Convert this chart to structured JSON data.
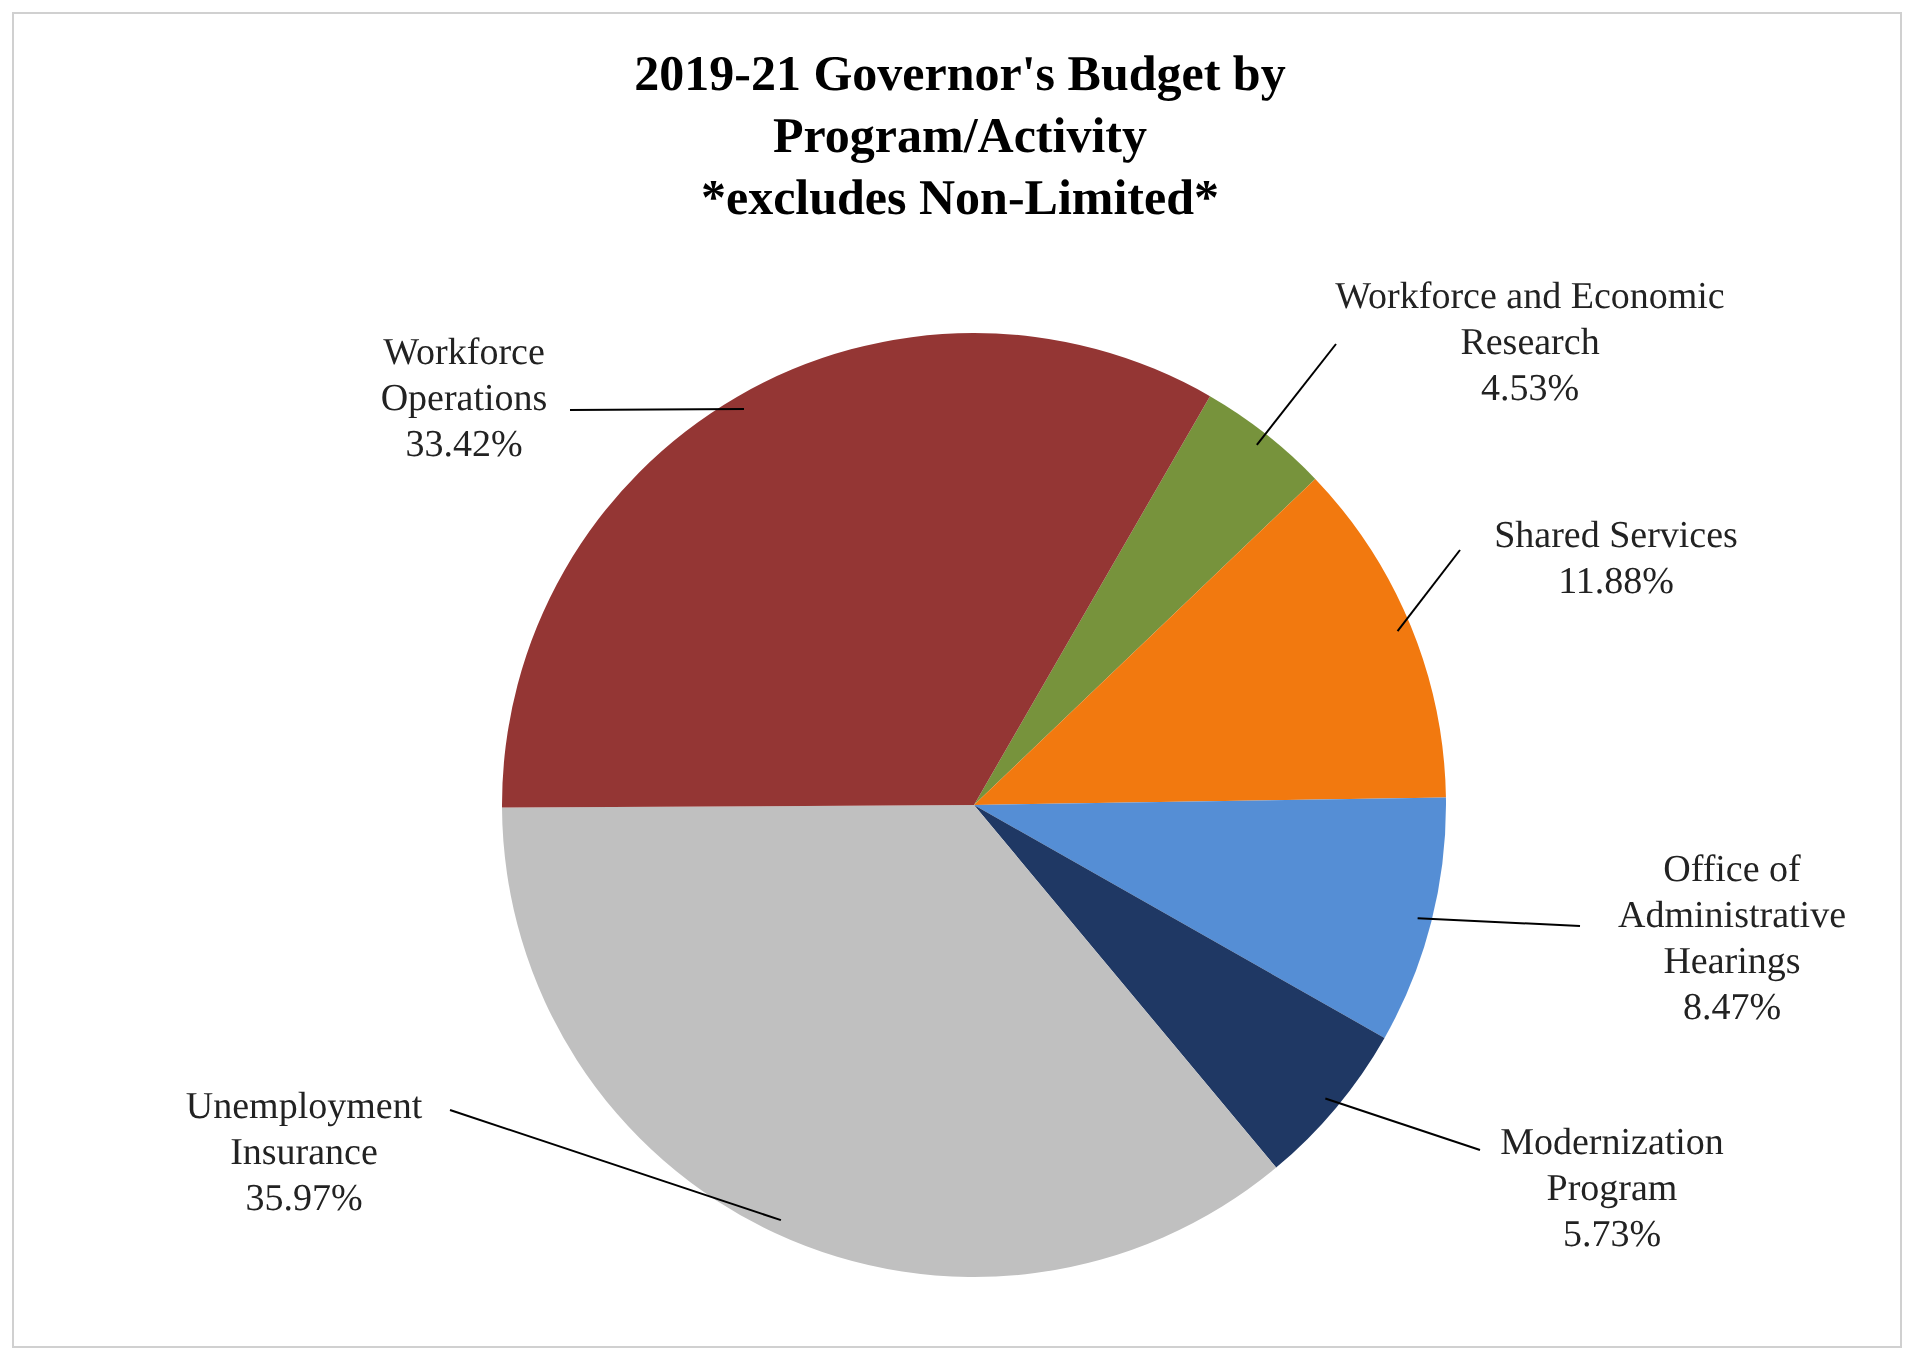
{
  "chart_data": {
    "type": "pie",
    "title": "2019-21 Governor's Budget by\nProgram/Activity\n*excludes Non-Limited*",
    "categories": [
      "Workforce and Economic Research",
      "Shared Services",
      "Office of Administrative Hearings",
      "Modernization Program",
      "Unemployment Insurance",
      "Workforce Operations"
    ],
    "values": [
      4.53,
      11.88,
      8.47,
      5.73,
      35.97,
      33.42
    ],
    "value_labels": [
      "4.53%",
      "11.88%",
      "8.47%",
      "5.73%",
      "35.97%",
      "33.42%"
    ],
    "colors": [
      "#77933c",
      "#f2790f",
      "#558ed5",
      "#1f3864",
      "#c0c0c0",
      "#943634"
    ]
  }
}
